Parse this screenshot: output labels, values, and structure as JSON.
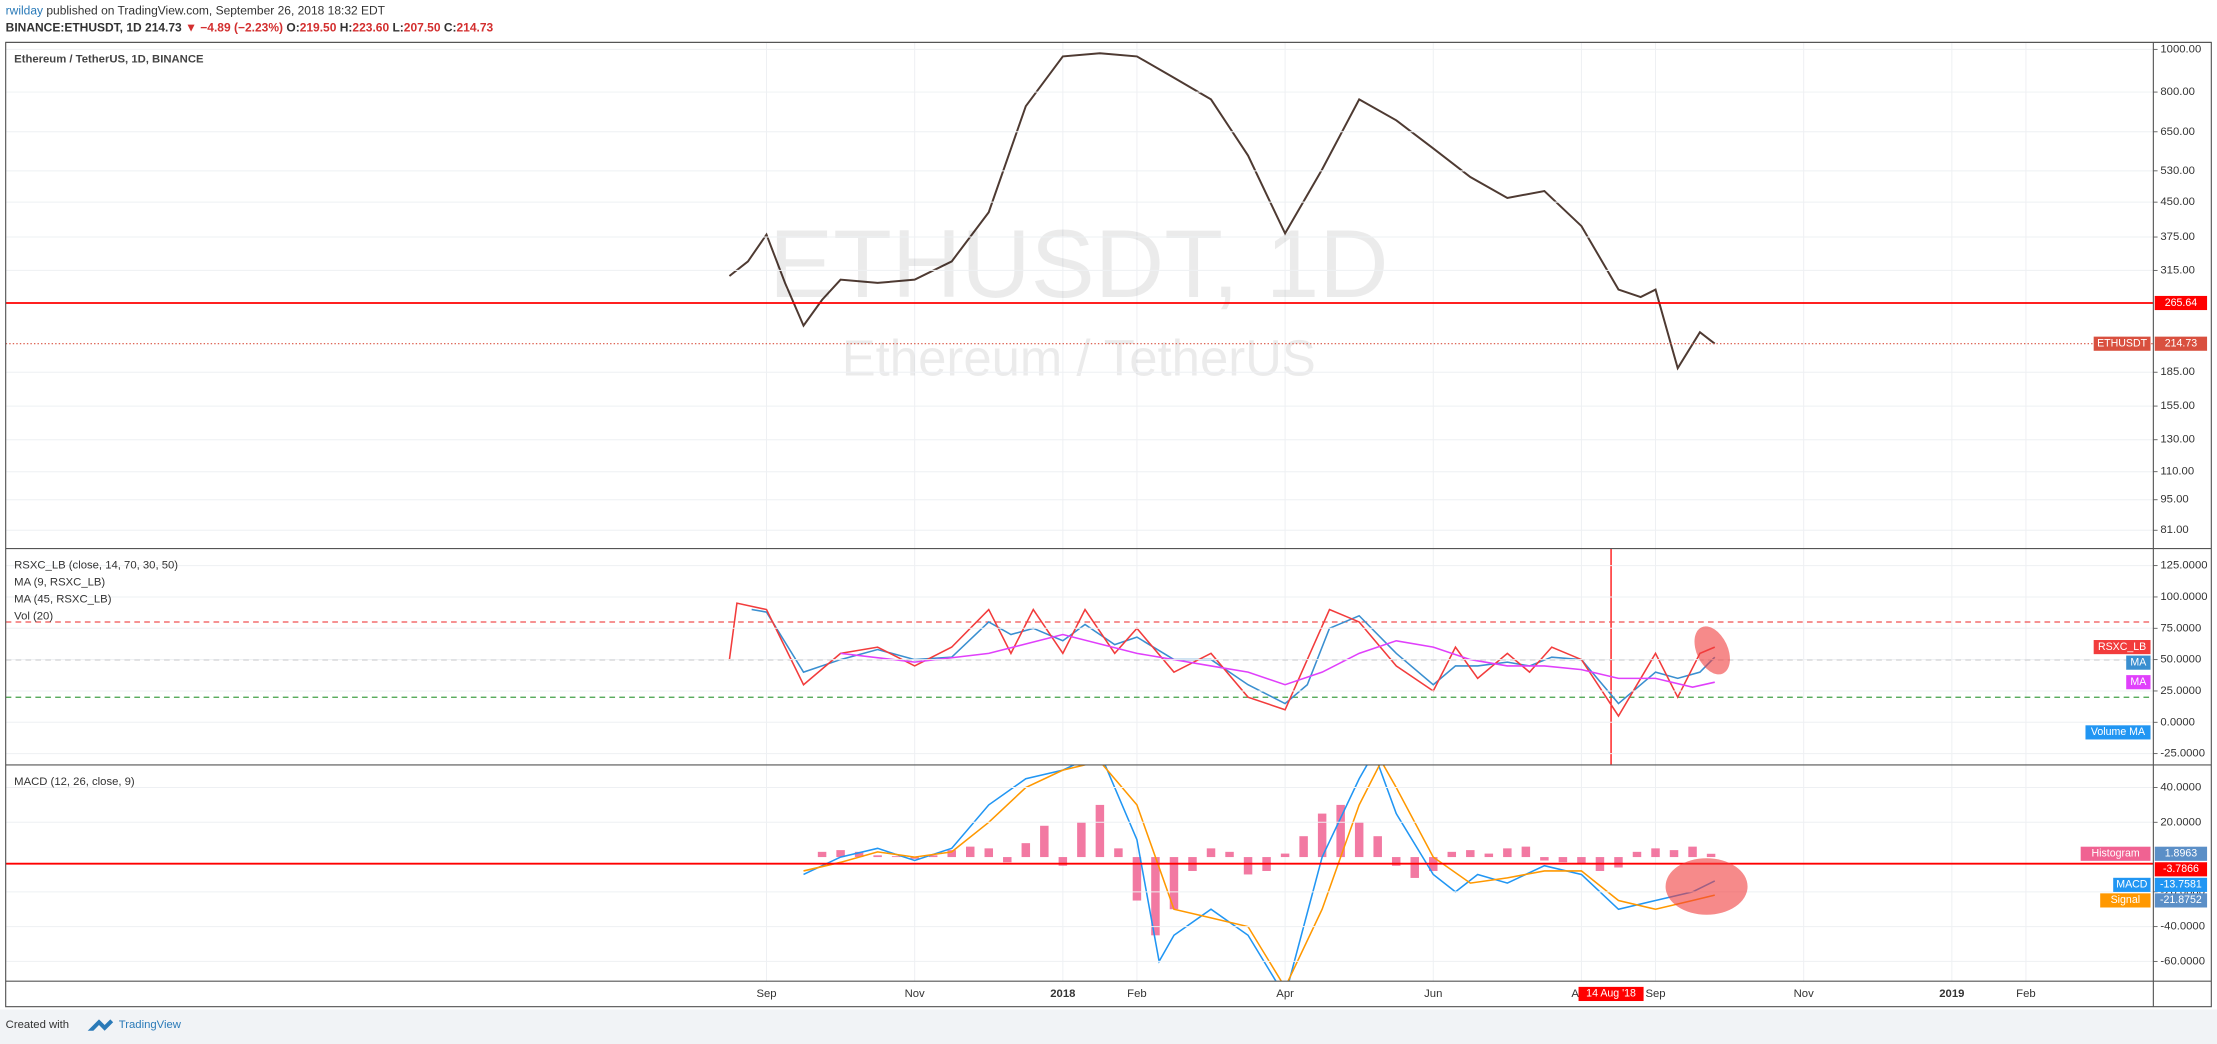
{
  "header": {
    "author": "rwilday",
    "published": "published on TradingView.com, September 26, 2018 18:32 EDT",
    "symbol": "BINANCE:ETHUSDT, 1D",
    "price": "214.73",
    "change": "▼ −4.89 (−2.23%)",
    "open_label": "O:",
    "open": "219.50",
    "high_label": "H:",
    "high": "223.60",
    "low_label": "L:",
    "low": "207.50",
    "close_label": "C:",
    "close": "214.73"
  },
  "chart_data": [
    {
      "type": "line",
      "title": "Ethereum / TetherUS, 1D, BINANCE",
      "watermark": "ETHUSDT, 1D",
      "watermark_subtitle": "Ethereum / TetherUS",
      "log_scale": true,
      "grid": true,
      "last_value_tags": true,
      "xlim": [
        -10.27,
        18.72
      ],
      "xticks": [
        {
          "value": 0,
          "label": "Sep"
        },
        {
          "value": 2,
          "label": "Nov"
        },
        {
          "value": 4,
          "label": "2018"
        },
        {
          "value": 5,
          "label": "Feb"
        },
        {
          "value": 7,
          "label": "Apr"
        },
        {
          "value": 9,
          "label": "Jun"
        },
        {
          "value": 11,
          "label": "Aug"
        },
        {
          "value": 12,
          "label": "Sep"
        },
        {
          "value": 14,
          "label": "Nov"
        },
        {
          "value": 16,
          "label": "2019"
        },
        {
          "value": 17,
          "label": "Feb"
        }
      ],
      "ylim": [
        73.6,
        1037
      ],
      "yticks": [
        {
          "value": 1000,
          "label": "1000.00"
        },
        {
          "value": 800,
          "label": "800.00"
        },
        {
          "value": 650,
          "label": "650.00"
        },
        {
          "value": 530,
          "label": "530.00"
        },
        {
          "value": 450,
          "label": "450.00"
        },
        {
          "value": 375,
          "label": "375.00"
        },
        {
          "value": 315,
          "label": "315.00"
        },
        {
          "value": 185,
          "label": "185.00"
        },
        {
          "value": 155,
          "label": "155.00"
        },
        {
          "value": 130,
          "label": "130.00"
        },
        {
          "value": 110,
          "label": "110.00"
        },
        {
          "value": 95,
          "label": "95.00"
        },
        {
          "value": 81,
          "label": "81.00"
        }
      ],
      "series": [
        {
          "name": "ETHUSDT",
          "color": "#d9503f",
          "line_color": "#4e3a32",
          "x": [
            -0.5,
            -0.25,
            0,
            0.25,
            0.5,
            0.75,
            1,
            1.5,
            2,
            2.5,
            3,
            3.5,
            4,
            4.5,
            5,
            5.5,
            6,
            6.5,
            7,
            7.5,
            8,
            8.5,
            9,
            9.5,
            10,
            10.5,
            11,
            11.5,
            11.8,
            12,
            12.3,
            12.6,
            12.8
          ],
          "values": [
            306,
            330,
            380,
            295,
            236,
            270,
            300,
            295,
            300,
            330,
            427,
            743,
            964,
            980,
            964,
            862,
            770,
            574,
            382,
            534,
            770,
            690,
            596,
            513,
            460,
            477,
            397,
            285,
            274,
            285,
            189,
            228,
            214.73
          ]
        }
      ],
      "hlines": [
        {
          "value": 265.64,
          "color": "#ff0000"
        }
      ],
      "marker": {
        "x": 11.4,
        "label": "14 Aug '18",
        "color": "#ff0000"
      }
    },
    {
      "type": "line",
      "legend": [
        "RSXC_LB (close, 14, 70, 30, 50)",
        "MA (9, RSXC_LB)",
        "MA (45, RSXC_LB)",
        "Vol (20)"
      ],
      "last_value_tags": false,
      "volume_label": "Volume MA",
      "ylim": [
        -34,
        138.6
      ],
      "yticks": [
        {
          "value": 125,
          "label": "125.0000"
        },
        {
          "value": 100,
          "label": "100.0000"
        },
        {
          "value": 75,
          "label": "75.0000"
        },
        {
          "value": 50,
          "label": "50.0000"
        },
        {
          "value": 25,
          "label": "25.0000"
        },
        {
          "value": 0,
          "label": "0.0000"
        },
        {
          "value": -25,
          "label": "-25.0000"
        }
      ],
      "levels": [
        {
          "value": 80,
          "color": "#f05050"
        },
        {
          "value": 50,
          "color": "#777777"
        },
        {
          "value": 20,
          "color": "#43a047"
        }
      ],
      "series": [
        {
          "name": "MA",
          "color": "#3a8fd0",
          "x": [
            -0.2,
            0,
            0.5,
            1,
            1.5,
            2,
            2.5,
            3,
            3.3,
            3.6,
            4,
            4.3,
            4.7,
            5,
            5.5,
            6,
            6.5,
            7,
            7.3,
            7.6,
            8,
            8.5,
            9,
            9.3,
            9.6,
            10,
            10.3,
            10.6,
            11,
            11.5,
            12,
            12.3,
            12.6,
            12.8
          ],
          "values": [
            90,
            88,
            40,
            50,
            58,
            50,
            52,
            80,
            70,
            75,
            65,
            78,
            62,
            68,
            50,
            50,
            30,
            15,
            30,
            75,
            85,
            55,
            30,
            45,
            45,
            48,
            45,
            52,
            50,
            15,
            40,
            35,
            40,
            52
          ]
        },
        {
          "name": "RSXC_LB",
          "color": "#f23c3c",
          "x": [
            -0.5,
            -0.4,
            0,
            0.5,
            1,
            1.5,
            2,
            2.5,
            3,
            3.3,
            3.6,
            4,
            4.3,
            4.7,
            5,
            5.5,
            6,
            6.5,
            7,
            7.3,
            7.6,
            8,
            8.5,
            9,
            9.3,
            9.6,
            10,
            10.3,
            10.6,
            11,
            11.5,
            12,
            12.3,
            12.6,
            12.8
          ],
          "values": [
            50,
            95,
            90,
            30,
            55,
            60,
            45,
            60,
            90,
            55,
            90,
            55,
            90,
            55,
            75,
            40,
            55,
            20,
            10,
            50,
            90,
            80,
            45,
            25,
            60,
            35,
            55,
            40,
            60,
            50,
            5,
            55,
            20,
            55,
            60
          ]
        },
        {
          "name": "MA",
          "color": "#e040fb",
          "x": [
            1,
            2,
            3,
            4,
            5,
            6,
            6.5,
            7,
            7.5,
            8,
            8.5,
            9,
            9.5,
            10,
            10.5,
            11,
            11.5,
            12,
            12.5,
            12.8
          ],
          "values": [
            55,
            48,
            55,
            70,
            55,
            45,
            40,
            30,
            40,
            55,
            65,
            60,
            50,
            45,
            45,
            42,
            35,
            35,
            28,
            32
          ]
        }
      ]
    },
    {
      "type": "combo",
      "legend": [
        "MACD (12, 26, close, 9)"
      ],
      "last_value_tags": true,
      "ylim": [
        -71.4,
        53
      ],
      "yticks": [
        {
          "value": 40,
          "label": "40.0000"
        },
        {
          "value": 20,
          "label": "20.0000"
        },
        {
          "value": -20,
          "label": "-20.0000"
        },
        {
          "value": -40,
          "label": "-40.0000"
        },
        {
          "value": -60,
          "label": "-60.0000"
        }
      ],
      "series": [
        {
          "name": "Histogram",
          "kind": "bar",
          "color": "#f06292",
          "value_color": "#5b8fc7",
          "x": [
            0.75,
            1,
            1.25,
            1.5,
            1.75,
            2,
            2.25,
            2.5,
            2.75,
            3,
            3.25,
            3.5,
            3.75,
            4,
            4.25,
            4.5,
            4.75,
            5,
            5.25,
            5.5,
            5.75,
            6,
            6.25,
            6.5,
            6.75,
            7,
            7.25,
            7.5,
            7.75,
            8,
            8.25,
            8.5,
            8.75,
            9,
            9.25,
            9.5,
            9.75,
            10,
            10.25,
            10.5,
            10.75,
            11,
            11.25,
            11.5,
            11.75,
            12,
            12.25,
            12.5,
            12.75
          ],
          "values": [
            3,
            4,
            3,
            1,
            0.5,
            -1,
            1,
            4,
            6,
            5,
            -3,
            8,
            18,
            -5,
            20,
            30,
            5,
            -25,
            -45,
            -30,
            -8,
            5,
            3,
            -10,
            -8,
            2,
            12,
            25,
            30,
            20,
            12,
            -5,
            -12,
            -8,
            3,
            4,
            2,
            5,
            6,
            -2,
            -3,
            -4,
            -8,
            -6,
            3,
            5,
            4,
            6,
            1.8963
          ]
        },
        {
          "name": "MACD",
          "kind": "line",
          "color": "#2196f3",
          "value_color": "#2196f3",
          "x": [
            0.5,
            1,
            1.5,
            2,
            2.5,
            3,
            3.5,
            4,
            4.5,
            5,
            5.3,
            5.5,
            6,
            6.5,
            7,
            7.5,
            8,
            8.2,
            8.5,
            9,
            9.3,
            9.6,
            10,
            10.5,
            11,
            11.5,
            12,
            12.5,
            12.8
          ],
          "values": [
            -10,
            0,
            5,
            -2,
            5,
            30,
            45,
            50,
            60,
            10,
            -60,
            -45,
            -30,
            -45,
            -80,
            0,
            45,
            60,
            25,
            -10,
            -20,
            -10,
            -15,
            -5,
            -10,
            -30,
            -25,
            -20,
            -13.7581
          ]
        },
        {
          "name": "Signal",
          "kind": "line",
          "color": "#ff9800",
          "value_color": "#5b8fc7",
          "x": [
            0.5,
            1,
            1.5,
            2,
            2.5,
            3,
            3.5,
            4,
            4.5,
            5,
            5.5,
            6,
            6.5,
            7,
            7.5,
            8,
            8.3,
            8.5,
            9,
            9.5,
            10,
            10.5,
            11,
            11.5,
            12,
            12.5,
            12.8
          ],
          "values": [
            -8,
            -3,
            3,
            0,
            3,
            20,
            40,
            50,
            55,
            30,
            -30,
            -35,
            -40,
            -75,
            -30,
            30,
            55,
            40,
            0,
            -15,
            -12,
            -8,
            -8,
            -25,
            -30,
            -25,
            -21.8752
          ]
        }
      ],
      "hlines": [
        {
          "value": -3.7866,
          "color": "#ff0000"
        }
      ]
    }
  ],
  "footer": {
    "created": "Created with",
    "brand": "TradingView"
  }
}
